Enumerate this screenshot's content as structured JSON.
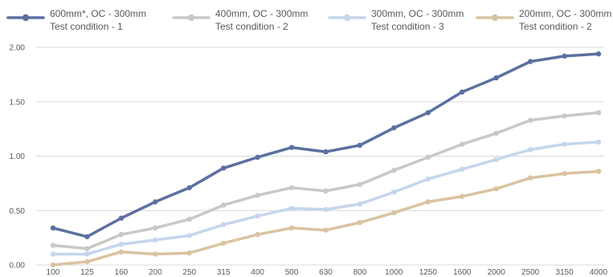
{
  "chart_data": {
    "type": "line",
    "title": "",
    "xlabel": "",
    "ylabel": "",
    "categories": [
      "100",
      "125",
      "160",
      "200",
      "250",
      "315",
      "400",
      "500",
      "630",
      "800",
      "1000",
      "1250",
      "1600",
      "2000",
      "2500",
      "3150",
      "4000"
    ],
    "y_ticks": [
      "0.00",
      "0.50",
      "1.00",
      "1.50",
      "2.00"
    ],
    "ylim": [
      0,
      2.2
    ],
    "grid": "horizontal",
    "legend_position": "top",
    "series": [
      {
        "line1": "600mm*, OC - 300mm",
        "line2": "Test condition - 1",
        "color": "#5b70a0",
        "values": [
          0.34,
          0.26,
          0.43,
          0.58,
          0.71,
          0.89,
          0.99,
          1.08,
          1.04,
          1.1,
          1.26,
          1.4,
          1.59,
          1.72,
          1.87,
          1.92,
          1.94
        ]
      },
      {
        "line1": "400mm, OC - 300mm",
        "line2": "Test condition - 2",
        "color": "#c8c8c8",
        "values": [
          0.18,
          0.15,
          0.28,
          0.34,
          0.42,
          0.55,
          0.64,
          0.71,
          0.68,
          0.74,
          0.87,
          0.99,
          1.11,
          1.21,
          1.33,
          1.37,
          1.4
        ]
      },
      {
        "line1": "300mm, OC - 300mm",
        "line2": "Test condition - 3",
        "color": "#c5d6ec",
        "values": [
          0.1,
          0.1,
          0.19,
          0.23,
          0.27,
          0.37,
          0.45,
          0.52,
          0.51,
          0.56,
          0.67,
          0.79,
          0.88,
          0.97,
          1.06,
          1.11,
          1.13
        ]
      },
      {
        "line1": "200mm, OC - 300mm",
        "line2": "Test condition - 2",
        "color": "#d9c3a0",
        "values": [
          0.0,
          0.03,
          0.12,
          0.1,
          0.11,
          0.2,
          0.28,
          0.34,
          0.32,
          0.39,
          0.48,
          0.58,
          0.63,
          0.7,
          0.8,
          0.84,
          0.86
        ]
      }
    ]
  }
}
